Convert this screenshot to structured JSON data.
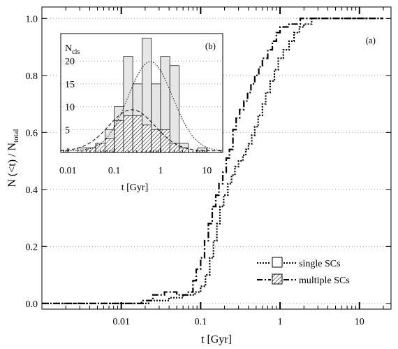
{
  "chart_data": [
    {
      "panel": "(a)",
      "type": "line",
      "x_scale": "log",
      "xlim": [
        0.001,
        25
      ],
      "ylim": [
        -0.02,
        1.04
      ],
      "xlabel": "t [Gyr]",
      "ylabel_main": "N (<t) / N",
      "ylabel_sub": "total",
      "x_ticks": [
        {
          "value": 0.01,
          "label": "0.01"
        },
        {
          "value": 0.1,
          "label": "0.1"
        },
        {
          "value": 1,
          "label": "1"
        },
        {
          "value": 10,
          "label": "10"
        }
      ],
      "y_ticks": [
        {
          "value": 0.0,
          "label": "0.0"
        },
        {
          "value": 0.2,
          "label": "0.2"
        },
        {
          "value": 0.4,
          "label": "0.4"
        },
        {
          "value": 0.6,
          "label": "0.6"
        },
        {
          "value": 0.8,
          "label": "0.8"
        },
        {
          "value": 1.0,
          "label": "1.0"
        }
      ],
      "grid": "horizontal dotted at y ticks",
      "legend_position": "bottom-right",
      "series": [
        {
          "name": "single SCs",
          "style": "dotted",
          "hatched": false,
          "points": [
            [
              0.001,
              0
            ],
            [
              0.022,
              0
            ],
            [
              0.022,
              0.01
            ],
            [
              0.04,
              0.01
            ],
            [
              0.04,
              0.02
            ],
            [
              0.06,
              0.02
            ],
            [
              0.06,
              0.03
            ],
            [
              0.085,
              0.03
            ],
            [
              0.085,
              0.04
            ],
            [
              0.1,
              0.04
            ],
            [
              0.1,
              0.06
            ],
            [
              0.115,
              0.06
            ],
            [
              0.115,
              0.1
            ],
            [
              0.13,
              0.1
            ],
            [
              0.13,
              0.16
            ],
            [
              0.145,
              0.16
            ],
            [
              0.145,
              0.22
            ],
            [
              0.16,
              0.22
            ],
            [
              0.16,
              0.28
            ],
            [
              0.175,
              0.28
            ],
            [
              0.175,
              0.34
            ],
            [
              0.195,
              0.34
            ],
            [
              0.195,
              0.38
            ],
            [
              0.22,
              0.38
            ],
            [
              0.22,
              0.42
            ],
            [
              0.245,
              0.42
            ],
            [
              0.245,
              0.45
            ],
            [
              0.27,
              0.45
            ],
            [
              0.27,
              0.48
            ],
            [
              0.3,
              0.48
            ],
            [
              0.3,
              0.5
            ],
            [
              0.34,
              0.5
            ],
            [
              0.34,
              0.52
            ],
            [
              0.37,
              0.52
            ],
            [
              0.37,
              0.54
            ],
            [
              0.4,
              0.54
            ],
            [
              0.4,
              0.56
            ],
            [
              0.44,
              0.56
            ],
            [
              0.44,
              0.59
            ],
            [
              0.48,
              0.59
            ],
            [
              0.48,
              0.62
            ],
            [
              0.53,
              0.62
            ],
            [
              0.53,
              0.66
            ],
            [
              0.6,
              0.66
            ],
            [
              0.6,
              0.7
            ],
            [
              0.66,
              0.7
            ],
            [
              0.66,
              0.74
            ],
            [
              0.75,
              0.74
            ],
            [
              0.75,
              0.78
            ],
            [
              0.85,
              0.78
            ],
            [
              0.85,
              0.82
            ],
            [
              0.95,
              0.82
            ],
            [
              0.95,
              0.86
            ],
            [
              1.1,
              0.86
            ],
            [
              1.1,
              0.89
            ],
            [
              1.3,
              0.89
            ],
            [
              1.3,
              0.92
            ],
            [
              1.5,
              0.92
            ],
            [
              1.5,
              0.95
            ],
            [
              1.75,
              0.95
            ],
            [
              1.75,
              0.97
            ],
            [
              2.0,
              0.97
            ],
            [
              2.0,
              0.98
            ],
            [
              2.5,
              0.98
            ],
            [
              2.5,
              1.0
            ],
            [
              20,
              1.0
            ]
          ]
        },
        {
          "name": "multiple SCs",
          "style": "dash-dot",
          "hatched": true,
          "points": [
            [
              0.001,
              0
            ],
            [
              0.018,
              0
            ],
            [
              0.018,
              0.01
            ],
            [
              0.025,
              0.01
            ],
            [
              0.025,
              0.03
            ],
            [
              0.035,
              0.03
            ],
            [
              0.035,
              0.04
            ],
            [
              0.05,
              0.04
            ],
            [
              0.05,
              0.03
            ],
            [
              0.07,
              0.03
            ],
            [
              0.07,
              0.04
            ],
            [
              0.08,
              0.04
            ],
            [
              0.08,
              0.08
            ],
            [
              0.088,
              0.08
            ],
            [
              0.088,
              0.12
            ],
            [
              0.1,
              0.12
            ],
            [
              0.1,
              0.16
            ],
            [
              0.112,
              0.16
            ],
            [
              0.112,
              0.22
            ],
            [
              0.125,
              0.22
            ],
            [
              0.125,
              0.28
            ],
            [
              0.14,
              0.28
            ],
            [
              0.14,
              0.34
            ],
            [
              0.155,
              0.34
            ],
            [
              0.155,
              0.38
            ],
            [
              0.17,
              0.38
            ],
            [
              0.17,
              0.42
            ],
            [
              0.19,
              0.42
            ],
            [
              0.19,
              0.46
            ],
            [
              0.21,
              0.46
            ],
            [
              0.21,
              0.51
            ],
            [
              0.23,
              0.51
            ],
            [
              0.23,
              0.54
            ],
            [
              0.255,
              0.54
            ],
            [
              0.255,
              0.61
            ],
            [
              0.28,
              0.61
            ],
            [
              0.28,
              0.65
            ],
            [
              0.31,
              0.65
            ],
            [
              0.31,
              0.68
            ],
            [
              0.35,
              0.68
            ],
            [
              0.35,
              0.71
            ],
            [
              0.39,
              0.71
            ],
            [
              0.39,
              0.74
            ],
            [
              0.43,
              0.74
            ],
            [
              0.43,
              0.77
            ],
            [
              0.48,
              0.77
            ],
            [
              0.48,
              0.8
            ],
            [
              0.54,
              0.8
            ],
            [
              0.54,
              0.83
            ],
            [
              0.6,
              0.83
            ],
            [
              0.6,
              0.86
            ],
            [
              0.7,
              0.86
            ],
            [
              0.7,
              0.89
            ],
            [
              0.8,
              0.89
            ],
            [
              0.8,
              0.92
            ],
            [
              0.9,
              0.92
            ],
            [
              0.9,
              0.95
            ],
            [
              1.0,
              0.95
            ],
            [
              1.0,
              0.97
            ],
            [
              1.3,
              0.97
            ],
            [
              1.3,
              0.98
            ],
            [
              1.8,
              0.98
            ],
            [
              1.8,
              1.0
            ],
            [
              20,
              1.0
            ]
          ]
        }
      ]
    },
    {
      "panel": "(b)",
      "type": "bar",
      "x_scale": "log",
      "xlim": [
        0.007,
        22
      ],
      "ylim": [
        0,
        26
      ],
      "xlabel": "t [Gyr]",
      "ylabel_main": "N",
      "ylabel_sub": "cls",
      "x_ticks": [
        {
          "value": 0.01,
          "label": "0.01"
        },
        {
          "value": 0.1,
          "label": "0.1"
        },
        {
          "value": 1,
          "label": "1"
        },
        {
          "value": 10,
          "label": "10"
        }
      ],
      "y_ticks": [
        {
          "value": 5,
          "label": "5"
        },
        {
          "value": 10,
          "label": "10"
        },
        {
          "value": 15,
          "label": "15"
        },
        {
          "value": 20,
          "label": "20"
        }
      ],
      "bin_log_width": 0.2,
      "series": [
        {
          "name": "single SCs",
          "fill": "light gray",
          "bins": [
            {
              "log_t_start": -1.8,
              "count": 1
            },
            {
              "log_t_start": -1.6,
              "count": 1
            },
            {
              "log_t_start": -1.4,
              "count": 2
            },
            {
              "log_t_start": -1.2,
              "count": 5
            },
            {
              "log_t_start": -1.0,
              "count": 10
            },
            {
              "log_t_start": -0.8,
              "count": 21
            },
            {
              "log_t_start": -0.6,
              "count": 15
            },
            {
              "log_t_start": -0.4,
              "count": 25
            },
            {
              "log_t_start": -0.2,
              "count": 15
            },
            {
              "log_t_start": 0.0,
              "count": 21
            },
            {
              "log_t_start": 0.2,
              "count": 19
            },
            {
              "log_t_start": 0.4,
              "count": 2
            },
            {
              "log_t_start": 0.8,
              "count": 1
            }
          ]
        },
        {
          "name": "multiple SCs",
          "fill": "hatched",
          "bins": [
            {
              "log_t_start": -1.6,
              "count": 1
            },
            {
              "log_t_start": -1.4,
              "count": 2
            },
            {
              "log_t_start": -1.2,
              "count": 3
            },
            {
              "log_t_start": -1.0,
              "count": 7
            },
            {
              "log_t_start": -0.8,
              "count": 8
            },
            {
              "log_t_start": -0.6,
              "count": 8
            },
            {
              "log_t_start": -0.4,
              "count": 6
            },
            {
              "log_t_start": -0.2,
              "count": 5
            },
            {
              "log_t_start": 0.0,
              "count": 5
            },
            {
              "log_t_start": 0.2,
              "count": 2
            },
            {
              "log_t_start": 0.4,
              "count": 1
            }
          ]
        }
      ],
      "curves": [
        {
          "style": "dotted",
          "gaussian_peak": 19.5,
          "mean_log_t": -0.22,
          "sigma_log_t": 0.48
        },
        {
          "style": "dashed",
          "gaussian_peak": 9.0,
          "mean_log_t": -0.62,
          "sigma_log_t": 0.5
        }
      ]
    }
  ]
}
